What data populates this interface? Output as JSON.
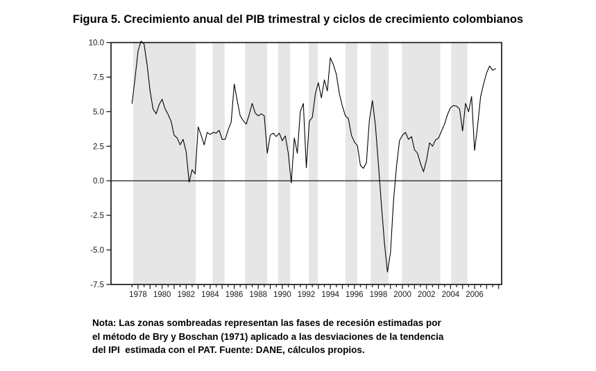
{
  "figure": {
    "title": "Figura 5. Crecimiento anual del PIB trimestral y ciclos de crecimiento colombianos",
    "note": "Nota: Las zonas sombreadas representan las fases de recesión estimadas por\nel método de Bry y Boschan (1971) aplicado a las desviaciones de la tendencia\ndel IPI  estimada con el PAT. Fuente: DANE, cálculos propios."
  },
  "chart_data": {
    "type": "line",
    "title": "Figura 5. Crecimiento anual del PIB trimestral y ciclos de crecimiento colombianos",
    "xlabel": "",
    "ylabel": "",
    "series": [
      {
        "name": "Crecimiento anual del PIB trimestral (%)",
        "x_start": 1977.5,
        "x_step": 0.25,
        "values": [
          5.6,
          7.4,
          9.4,
          10.1,
          9.9,
          8.4,
          6.5,
          5.2,
          4.85,
          5.5,
          5.9,
          5.2,
          4.8,
          4.3,
          3.3,
          3.1,
          2.6,
          3.0,
          2.1,
          -0.1,
          0.8,
          0.5,
          3.9,
          3.3,
          2.6,
          3.5,
          3.35,
          3.5,
          3.45,
          3.65,
          3.0,
          3.0,
          3.7,
          4.25,
          7.0,
          5.8,
          4.7,
          4.35,
          4.1,
          4.8,
          5.6,
          4.9,
          4.7,
          4.85,
          4.7,
          2.0,
          3.3,
          3.45,
          3.2,
          3.45,
          2.9,
          3.25,
          2.0,
          -0.15,
          3.1,
          2.0,
          5.0,
          5.6,
          0.95,
          4.3,
          4.6,
          6.3,
          7.1,
          6.0,
          7.3,
          6.5,
          8.9,
          8.4,
          7.7,
          6.3,
          5.4,
          4.7,
          4.5,
          3.3,
          2.8,
          2.55,
          1.1,
          0.9,
          1.3,
          4.4,
          5.8,
          4.0,
          1.2,
          -1.8,
          -4.5,
          -6.6,
          -5.2,
          -1.5,
          1.0,
          2.9,
          3.3,
          3.5,
          3.0,
          3.2,
          2.25,
          2.0,
          1.25,
          0.65,
          1.5,
          2.75,
          2.5,
          2.95,
          3.1,
          3.6,
          4.1,
          4.8,
          5.3,
          5.45,
          5.4,
          5.2,
          3.6,
          5.6,
          5.0,
          6.1,
          2.2,
          4.0,
          6.1,
          7.0,
          7.8,
          8.3,
          8.0,
          8.1
        ]
      }
    ],
    "xlim": [
      1975.75,
      2008.25
    ],
    "ylim": [
      -7.5,
      10.0
    ],
    "yticks": [
      10.0,
      7.5,
      5.0,
      2.5,
      0.0,
      -2.5,
      -5.0,
      -7.5
    ],
    "ytick_labels": [
      "10.0",
      "7.5",
      "5.0",
      "2.5",
      "0.0",
      "-2.5",
      "-5.0",
      "-7.5"
    ],
    "xtick_years": [
      1978,
      1980,
      1982,
      1984,
      1986,
      1988,
      1990,
      1992,
      1994,
      1996,
      1998,
      2000,
      2002,
      2004,
      2006
    ],
    "xtick_labels": [
      "1978",
      "1980",
      "1982",
      "1984",
      "1986",
      "1988",
      "1990",
      "1992",
      "1994",
      "1996",
      "1998",
      "2000",
      "2002",
      "2004",
      "2006"
    ],
    "xtick_minor_start": 1977.5,
    "xtick_minor_end": 2008.0,
    "minor_xtick_step": 0.5,
    "zero_line": 0.0,
    "grid": "off",
    "legend": "none",
    "recession_bands": [
      [
        1977.6,
        1982.8
      ],
      [
        1984.2,
        1985.2
      ],
      [
        1986.9,
        1988.75
      ],
      [
        1989.65,
        1990.65
      ],
      [
        1992.2,
        1992.95
      ],
      [
        1995.25,
        1996.25
      ],
      [
        1997.35,
        1998.85
      ],
      [
        1999.95,
        2003.15
      ],
      [
        2004.05,
        2005.4
      ]
    ],
    "colors": {
      "line": "#000000",
      "band": "#e6e6e6",
      "frame": "#1a1a1a",
      "zero_line": "#3c3c3c",
      "tick": "#1a1a1a",
      "tick_label": "#1a1a1a",
      "background": "#ffffff"
    }
  }
}
